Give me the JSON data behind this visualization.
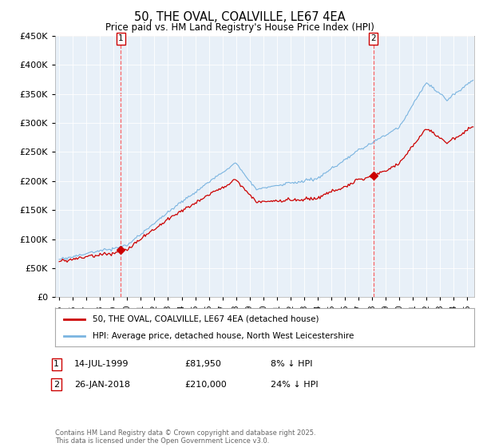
{
  "title": "50, THE OVAL, COALVILLE, LE67 4EA",
  "subtitle": "Price paid vs. HM Land Registry's House Price Index (HPI)",
  "ylim": [
    0,
    450000
  ],
  "yticks": [
    0,
    50000,
    100000,
    150000,
    200000,
    250000,
    300000,
    350000,
    400000,
    450000
  ],
  "xlim_start": 1994.7,
  "xlim_end": 2025.5,
  "hpi_color": "#7ab4e0",
  "price_color": "#cc0000",
  "vline_color": "#ff4444",
  "marker1_x": 1999.54,
  "marker1_y": 81950,
  "marker2_x": 2018.08,
  "marker2_y": 210000,
  "marker1_label": "1",
  "marker2_label": "2",
  "legend1_text": "50, THE OVAL, COALVILLE, LE67 4EA (detached house)",
  "legend2_text": "HPI: Average price, detached house, North West Leicestershire",
  "footer": "Contains HM Land Registry data © Crown copyright and database right 2025.\nThis data is licensed under the Open Government Licence v3.0.",
  "background_color": "#ffffff",
  "plot_bg_color": "#e8f0f8",
  "grid_color": "#ffffff"
}
